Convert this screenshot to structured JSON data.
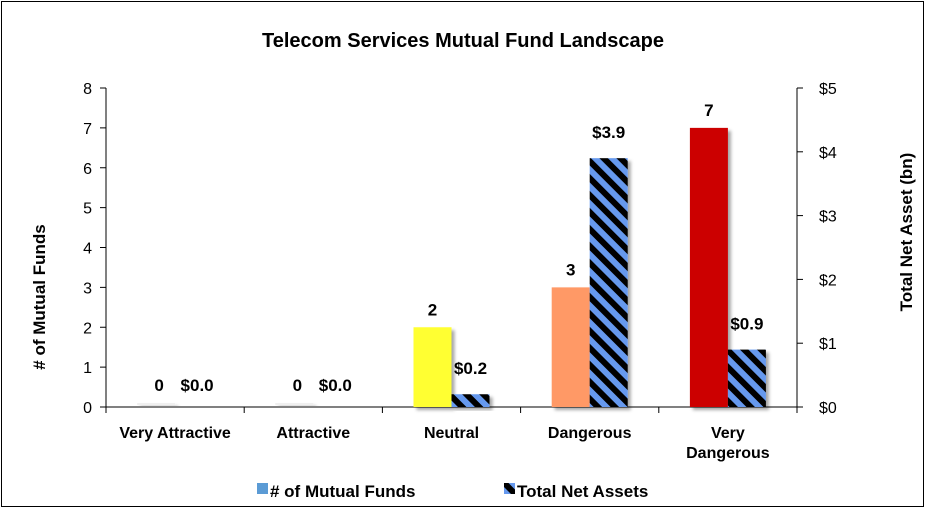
{
  "chart_data": {
    "type": "bar",
    "title": "Telecom Services Mutual Fund Landscape",
    "categories": [
      [
        "Very Attractive"
      ],
      [
        "Attractive"
      ],
      [
        "Neutral"
      ],
      [
        "Dangerous"
      ],
      [
        "Very",
        "Dangerous"
      ]
    ],
    "series": [
      {
        "name": "# of Mutual Funds",
        "axis": "left",
        "values": [
          0,
          0,
          2,
          3,
          7
        ],
        "labels": [
          "0",
          "0",
          "2",
          "3",
          "7"
        ],
        "colors": [
          "#f0f0f0",
          "#f0f0f0",
          "#ffff33",
          "#ff9966",
          "#cc0000"
        ]
      },
      {
        "name": "Total Net Assets",
        "axis": "right",
        "values": [
          0.0,
          0.0,
          0.2,
          3.9,
          0.9
        ],
        "labels": [
          "$0.0",
          "$0.0",
          "$0.2",
          "$3.9",
          "$0.9"
        ],
        "fill": "hatched-blue-black"
      }
    ],
    "y_left": {
      "label": "# of Mutual Funds",
      "ylim": [
        0,
        8
      ],
      "ticks": [
        "0",
        "1",
        "2",
        "3",
        "4",
        "5",
        "6",
        "7",
        "8"
      ]
    },
    "y_right": {
      "label": "Total Net Asset (bn)",
      "ylim": [
        0,
        5
      ],
      "ticks": [
        "$0",
        "$1",
        "$2",
        "$3",
        "$4",
        "$5"
      ]
    },
    "grid": false,
    "legend": "bottom"
  },
  "colors": {
    "hatch_blue": "#6699ee",
    "hatch_black": "#000000",
    "legend_funds": "#5b9bd5"
  }
}
